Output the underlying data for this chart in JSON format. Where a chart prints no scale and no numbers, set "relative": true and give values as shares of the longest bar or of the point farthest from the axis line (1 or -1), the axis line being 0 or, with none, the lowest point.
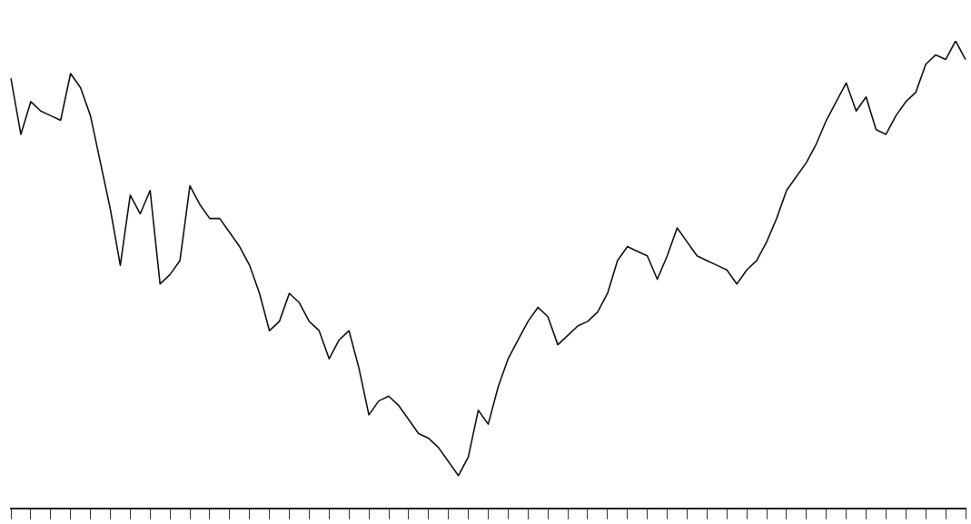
{
  "chart_data": {
    "type": "line",
    "relative": true,
    "marker": "none",
    "line_style": "solid",
    "grid": false,
    "categories": [
      null,
      null,
      null,
      null,
      null,
      null,
      null,
      null,
      null,
      null,
      null,
      null,
      null,
      null,
      null,
      null,
      null,
      null,
      null,
      null,
      null,
      null,
      null,
      null,
      null,
      null,
      null,
      null,
      null,
      null,
      null,
      null,
      null,
      null,
      null,
      null,
      null,
      null,
      null,
      null,
      null,
      null,
      null,
      null,
      null,
      null,
      null,
      null,
      null,
      null,
      null,
      null,
      null,
      null,
      null,
      null,
      null,
      null,
      null,
      null,
      null,
      null,
      null,
      null,
      null,
      null,
      null,
      null,
      null,
      null,
      null,
      null,
      null,
      null,
      null,
      null,
      null,
      null,
      null,
      null,
      null,
      null,
      null,
      null,
      null,
      null,
      null,
      null,
      null,
      null,
      null,
      null,
      null,
      null,
      null,
      null,
      null
    ],
    "series": [
      {
        "color": "#111111",
        "values": [
          0.92,
          0.8,
          0.87,
          0.85,
          0.84,
          0.83,
          0.93,
          0.9,
          0.84,
          0.74,
          0.64,
          0.52,
          0.67,
          0.63,
          0.68,
          0.48,
          0.5,
          0.53,
          0.69,
          0.65,
          0.62,
          0.62,
          0.59,
          0.56,
          0.52,
          0.46,
          0.38,
          0.4,
          0.46,
          0.44,
          0.4,
          0.38,
          0.32,
          0.36,
          0.38,
          0.3,
          0.2,
          0.23,
          0.24,
          0.22,
          0.19,
          0.16,
          0.15,
          0.13,
          0.1,
          0.07,
          0.11,
          0.21,
          0.18,
          0.26,
          0.32,
          0.36,
          0.4,
          0.43,
          0.41,
          0.35,
          0.37,
          0.39,
          0.4,
          0.42,
          0.46,
          0.53,
          0.56,
          0.55,
          0.54,
          0.49,
          0.54,
          0.6,
          0.57,
          0.54,
          0.53,
          0.52,
          0.51,
          0.48,
          0.51,
          0.53,
          0.57,
          0.62,
          0.68,
          0.71,
          0.74,
          0.78,
          0.83,
          0.87,
          0.91,
          0.85,
          0.88,
          0.81,
          0.8,
          0.84,
          0.87,
          0.89,
          0.95,
          0.97,
          0.96,
          1.0,
          0.96
        ]
      }
    ]
  }
}
